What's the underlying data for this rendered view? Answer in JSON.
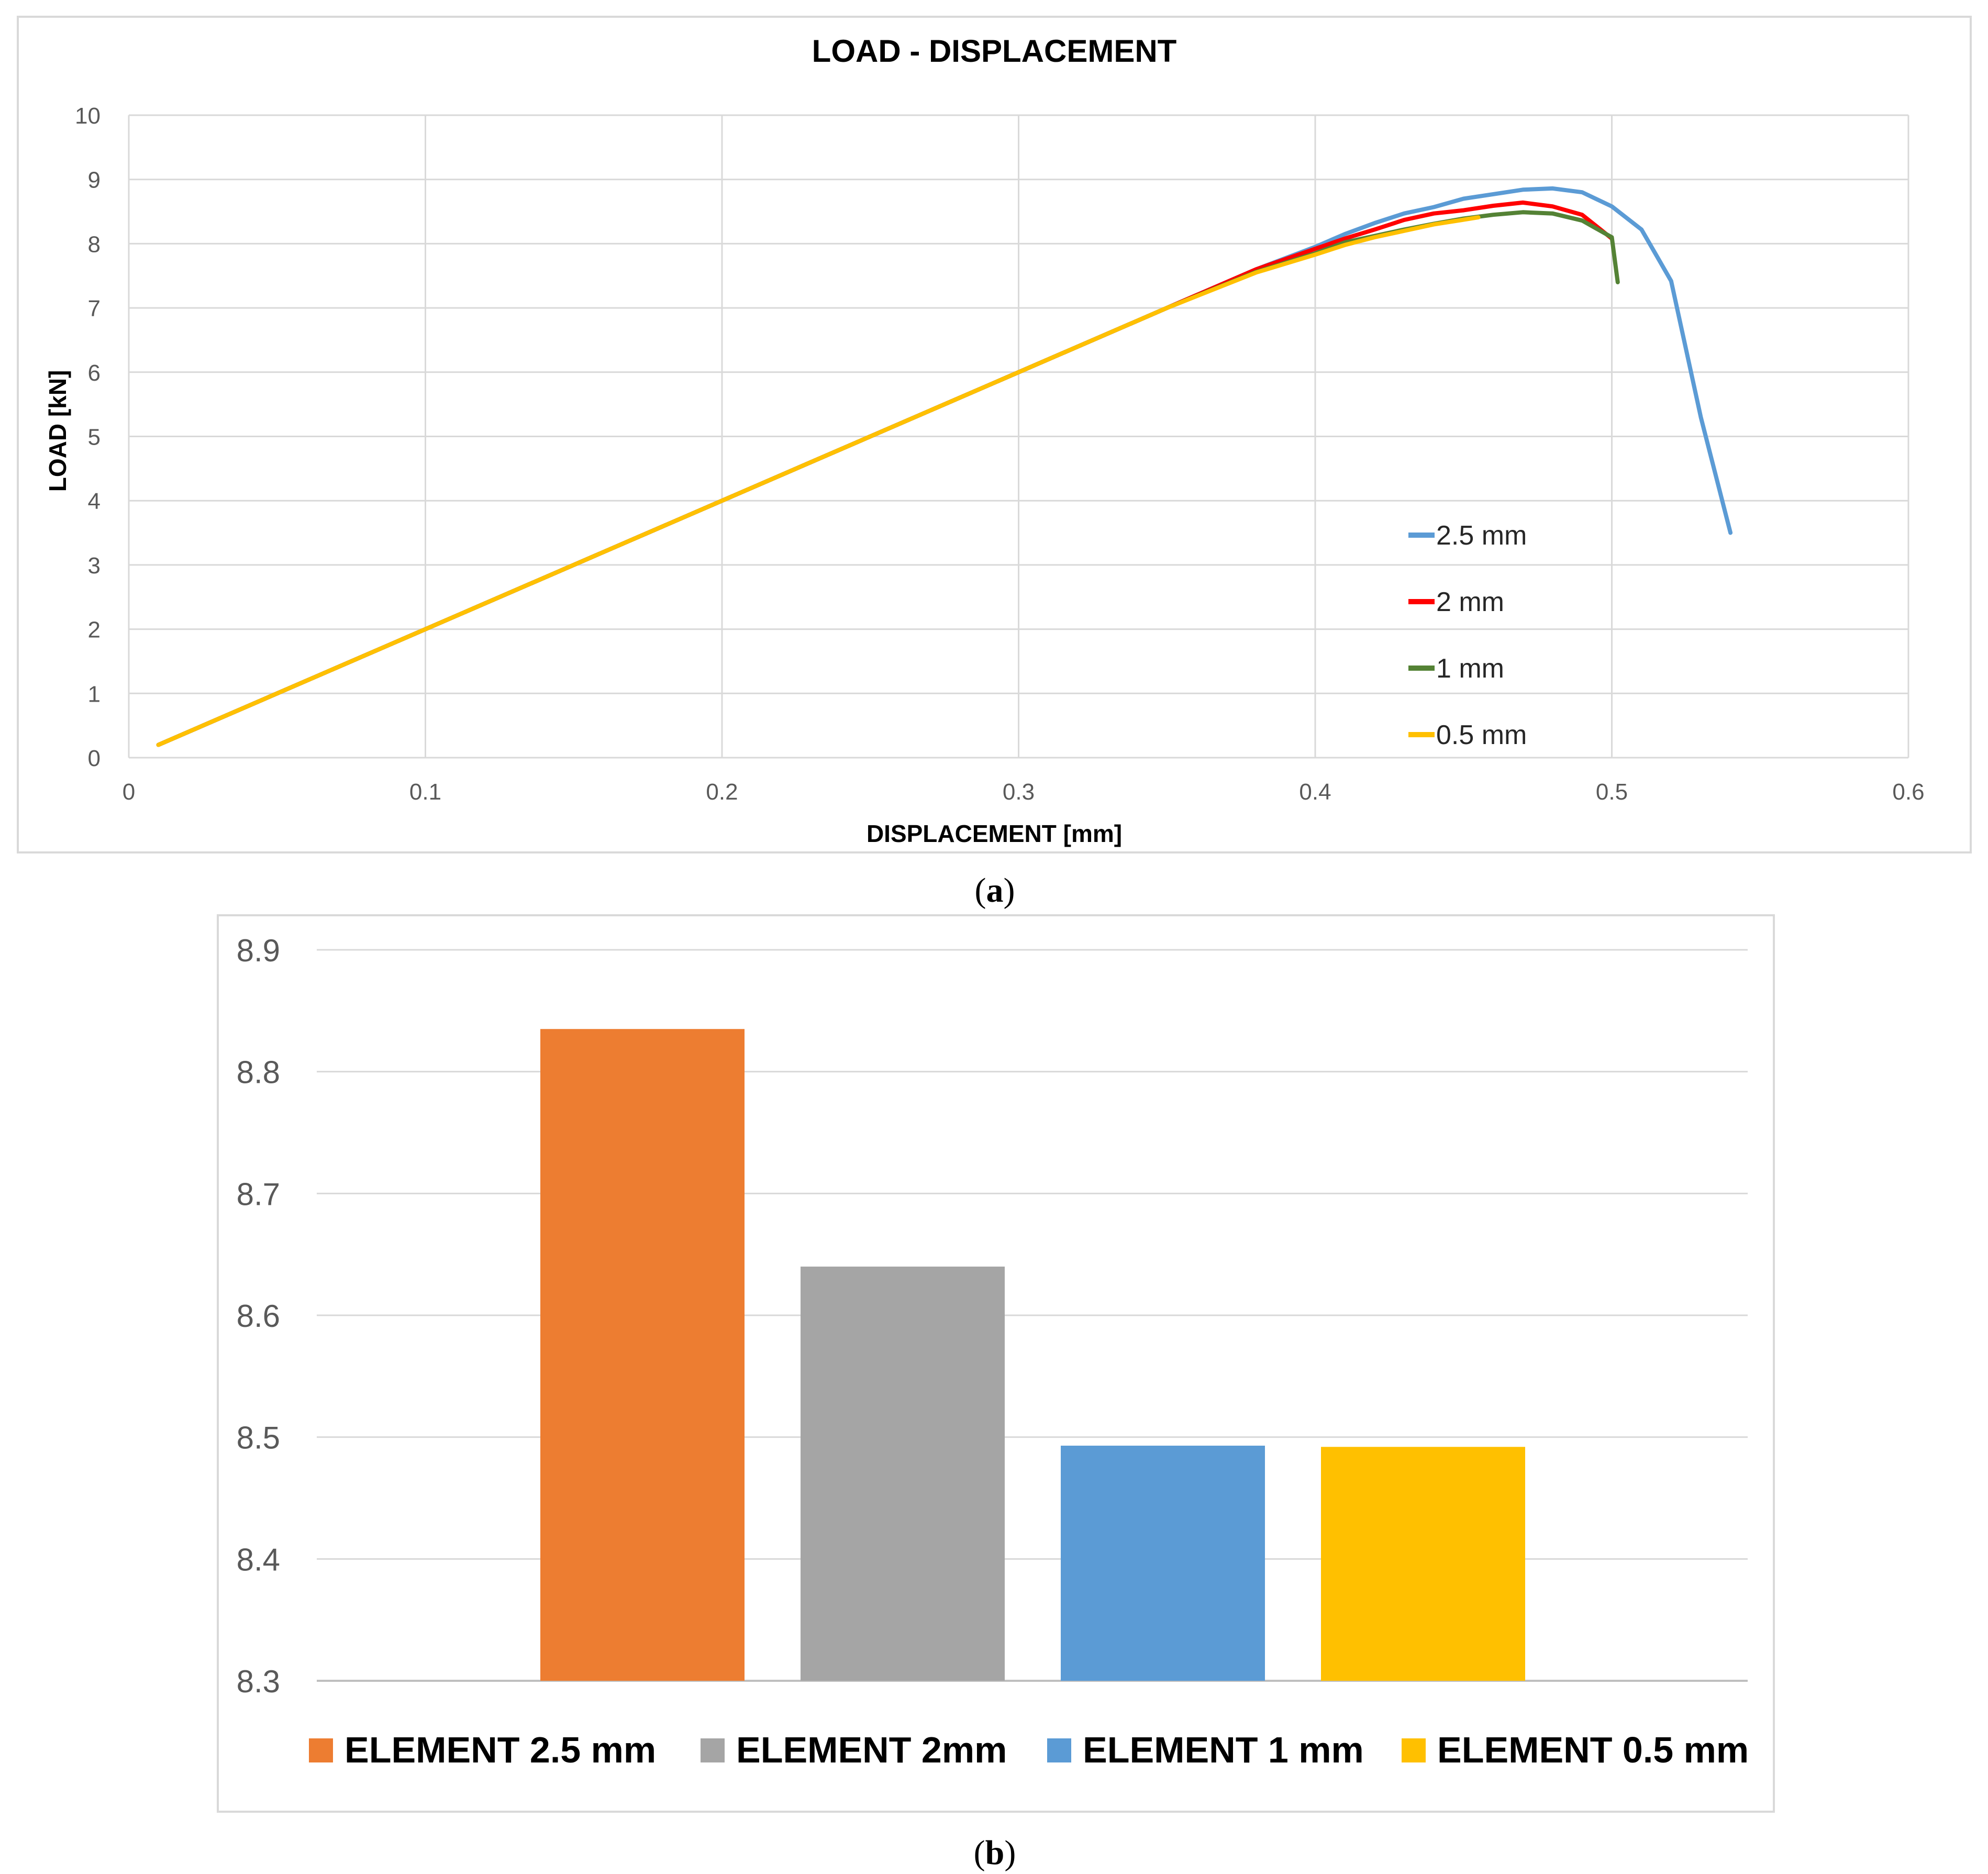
{
  "colors": {
    "series_2_5mm": "#5b9bd5",
    "series_2mm": "#ff0000",
    "series_1mm": "#548235",
    "series_0_5mm": "#ffc000",
    "bar_2_5mm": "#ed7d31",
    "bar_2mm": "#a5a5a5",
    "bar_1mm": "#5b9bd5",
    "bar_0_5mm": "#ffc000",
    "grid": "#d9d9d9",
    "frame": "#d9d9d9",
    "axis_text": "#595959"
  },
  "panel_a": {
    "caption_letter": "a"
  },
  "panel_b": {
    "caption_letter": "b"
  },
  "chart_data": [
    {
      "type": "line",
      "title": "LOAD - DISPLACEMENT",
      "xlabel": "DISPLACEMENT [mm]",
      "ylabel": "LOAD [kN]",
      "xlim": [
        0,
        0.6
      ],
      "ylim": [
        0,
        10
      ],
      "xticks": [
        "0",
        "0.1",
        "0.2",
        "0.3",
        "0.4",
        "0.5",
        "0.6"
      ],
      "yticks": [
        "0",
        "1",
        "2",
        "3",
        "4",
        "5",
        "6",
        "7",
        "8",
        "9",
        "10"
      ],
      "grid": true,
      "legend_position": "bottom-right inside plot",
      "series": [
        {
          "name": "2.5 mm",
          "x": [
            0.01,
            0.35,
            0.38,
            0.4,
            0.41,
            0.42,
            0.43,
            0.44,
            0.45,
            0.46,
            0.47,
            0.48,
            0.49,
            0.5,
            0.51,
            0.52,
            0.53,
            0.54
          ],
          "y": [
            0.2,
            7.0,
            7.6,
            7.95,
            8.15,
            8.32,
            8.47,
            8.57,
            8.7,
            8.77,
            8.84,
            8.86,
            8.8,
            8.58,
            8.22,
            7.42,
            5.3,
            3.5
          ]
        },
        {
          "name": "2 mm",
          "x": [
            0.01,
            0.35,
            0.38,
            0.4,
            0.41,
            0.42,
            0.43,
            0.44,
            0.45,
            0.46,
            0.47,
            0.48,
            0.49,
            0.5
          ],
          "y": [
            0.2,
            7.0,
            7.6,
            7.92,
            8.08,
            8.22,
            8.37,
            8.47,
            8.52,
            8.59,
            8.64,
            8.58,
            8.45,
            8.08
          ]
        },
        {
          "name": "1 mm",
          "x": [
            0.01,
            0.35,
            0.38,
            0.4,
            0.41,
            0.42,
            0.43,
            0.44,
            0.45,
            0.46,
            0.47,
            0.48,
            0.49,
            0.5,
            0.502
          ],
          "y": [
            0.2,
            7.0,
            7.56,
            7.85,
            8.02,
            8.12,
            8.22,
            8.31,
            8.39,
            8.45,
            8.49,
            8.47,
            8.36,
            8.1,
            7.4
          ]
        },
        {
          "name": "0.5 mm",
          "x": [
            0.01,
            0.35,
            0.38,
            0.4,
            0.41,
            0.42,
            0.43,
            0.44,
            0.455
          ],
          "y": [
            0.2,
            7.0,
            7.55,
            7.83,
            7.98,
            8.1,
            8.2,
            8.3,
            8.41
          ]
        }
      ]
    },
    {
      "type": "bar",
      "title": "",
      "xlabel": "",
      "ylabel": "",
      "ylim": [
        8.3,
        8.9
      ],
      "yticks": [
        "8.3",
        "8.4",
        "8.5",
        "8.6",
        "8.7",
        "8.8",
        "8.9"
      ],
      "grid": true,
      "legend_position": "bottom",
      "categories": [
        "ELEMENT 2.5 mm",
        "ELEMENT 2mm",
        "ELEMENT 1 mm",
        "ELEMENT 0.5 mm"
      ],
      "values": [
        8.835,
        8.64,
        8.493,
        8.492
      ]
    }
  ]
}
